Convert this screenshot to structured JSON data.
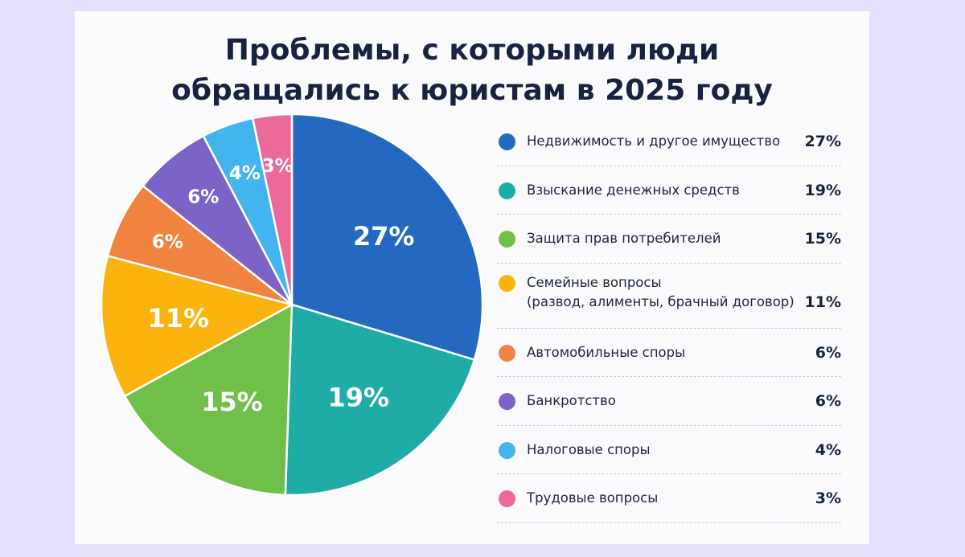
{
  "title": [
    "Проблемы, с которыми люди",
    "обращались к юристам в 2025 году"
  ],
  "chart_data": {
    "type": "pie",
    "unit": "%",
    "slices": [
      {
        "label": "Недвижимость и другое имущество",
        "value": 27,
        "color": "#2468c0"
      },
      {
        "label": "Взыскание денежных средств",
        "value": 19,
        "color": "#20aca6"
      },
      {
        "label": "Защита прав потребителей",
        "value": 15,
        "color": "#6fbf48"
      },
      {
        "label": "Семейные вопросы\n(развод, алименты, брачный договор)",
        "value": 11,
        "color": "#fbb30f"
      },
      {
        "label": "Автомобильные споры",
        "value": 6,
        "color": "#f08340"
      },
      {
        "label": "Банкротство",
        "value": 6,
        "color": "#7c63c8"
      },
      {
        "label": "Налоговые споры",
        "value": 4,
        "color": "#43b4ee"
      },
      {
        "label": "Трудовые вопросы",
        "value": 3,
        "color": "#ec6a9b"
      }
    ],
    "slice_labels": [
      "27%",
      "19%",
      "15%",
      "11%",
      "6%",
      "6%",
      "4%",
      "3%"
    ],
    "legend_values": [
      "27%",
      "19%",
      "15%",
      "11%",
      "6%",
      "6%",
      "4%",
      "3%"
    ],
    "legend_position": "right"
  }
}
